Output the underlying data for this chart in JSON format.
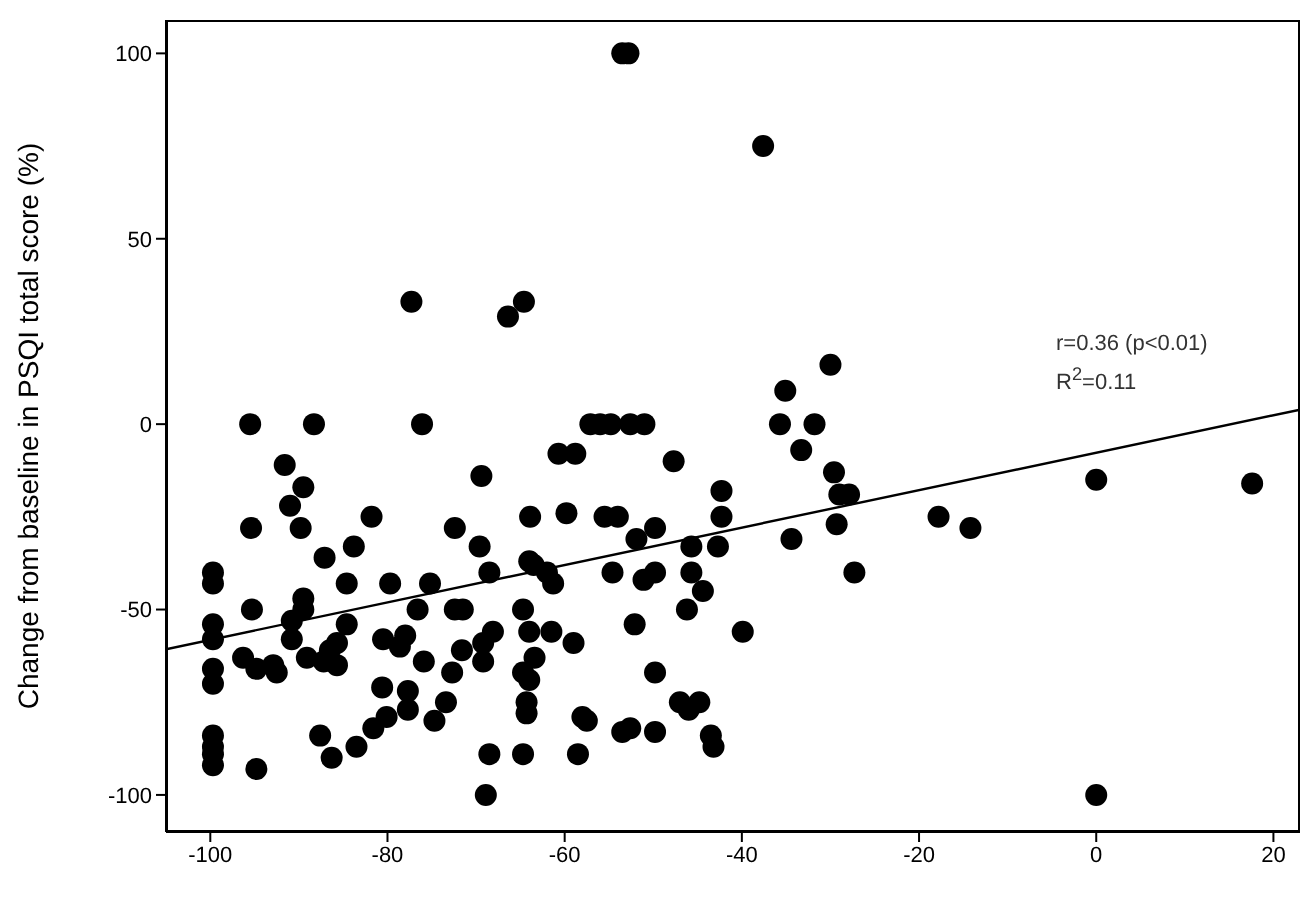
{
  "chart_data": {
    "type": "scatter",
    "ylabel": "Change from baseline in PSQI total score (%)",
    "xlim": [
      -105,
      23
    ],
    "xticks": [
      -100,
      -80,
      -60,
      -40,
      -20,
      0,
      20
    ],
    "ylim": [
      -110,
      109
    ],
    "yticks": [
      -100,
      -50,
      0,
      50,
      100
    ],
    "marker": "circle",
    "annotations": [
      "r=0.36 (p<0.01)",
      "R$^{2}$=0.11"
    ],
    "series": [
      {
        "color": "#000000",
        "x": [
          -53.5,
          -52.8,
          -37.6,
          -77.3,
          -64.6,
          -66.4,
          -95.5,
          -88.3,
          -76.1,
          -57.1,
          -56,
          -54.8,
          -52.6,
          -51,
          -35.7,
          -31.8,
          -35.1,
          -30,
          -33.3,
          -29.6,
          -29,
          -27.9,
          -29.3,
          -34.4,
          -27.3,
          -17.8,
          -14.2,
          0,
          17.6,
          0,
          -91.6,
          -89.5,
          -91,
          -89.8,
          -95.4,
          -69.4,
          -81.8,
          -72.4,
          -63.9,
          -87.1,
          -83.8,
          -69.6,
          -68.5,
          -64,
          -99.7,
          -99.7,
          -84.6,
          -79.7,
          -75.2,
          -89.5,
          -89.5,
          -95.3,
          -76.6,
          -72.4,
          -71.5,
          -64.7,
          -99.7,
          -99.7,
          -90.8,
          -90.8,
          -84.6,
          -85.7,
          -86.5,
          -80.5,
          -78.6,
          -78,
          -68.1,
          -69.2,
          -64,
          -63.4,
          -96.3,
          -94.8,
          -92.9,
          -92.5,
          -89.1,
          -87.2,
          -85.7,
          -75.9,
          -71.6,
          -69.2,
          -99.7,
          -99.7,
          -72.7,
          -64.7,
          -64,
          -80.6,
          -77.7,
          -77.7,
          -73.4,
          -74.7,
          -64.3,
          -64.3,
          -80.1,
          -81.6,
          -87.6,
          -99.7,
          -99.7,
          -99.7,
          -99.7,
          -83.5,
          -86.3,
          -94.8,
          -68.5,
          -64.7,
          -68.9,
          -60.7,
          -58.8,
          -47.7,
          -42.3,
          -42.3,
          -42.7,
          -45.7,
          -45.7,
          -44.4,
          -46.2,
          -39.9,
          -59.8,
          -55.5,
          -54,
          -51.9,
          -49.8,
          -63.5,
          -62,
          -61.3,
          -54.6,
          -51.1,
          -49.8,
          -61.5,
          -59,
          -52.1,
          -49.8,
          -47,
          -44.8,
          -46,
          -58,
          -57.5,
          -53.5,
          -52.6,
          -49.8,
          -43.5,
          -43.2,
          -58.5
        ],
        "values": [
          100,
          100,
          75,
          33,
          33,
          29,
          0,
          0,
          0,
          0,
          0,
          0,
          0,
          0,
          0,
          0,
          9,
          16,
          -7,
          -13,
          -19,
          -19,
          -27,
          -31,
          -40,
          -25,
          -28,
          -15,
          -16,
          -100,
          -11,
          -17,
          -22,
          -28,
          -28,
          -14,
          -25,
          -28,
          -25,
          -36,
          -33,
          -33,
          -40,
          -37,
          -40,
          -43,
          -43,
          -43,
          -43,
          -47,
          -50,
          -50,
          -50,
          -50,
          -50,
          -50,
          -54,
          -58,
          -53,
          -58,
          -54,
          -59,
          -61,
          -58,
          -60,
          -57,
          -56,
          -59,
          -56,
          -63,
          -63,
          -66,
          -65,
          -67,
          -63,
          -64,
          -65,
          -64,
          -61,
          -64,
          -66,
          -70,
          -67,
          -67,
          -69,
          -71,
          -72,
          -77,
          -75,
          -80,
          -75,
          -78,
          -79,
          -82,
          -84,
          -84,
          -87,
          -89,
          -92,
          -87,
          -90,
          -93,
          -89,
          -89,
          -100,
          -8,
          -8,
          -10,
          -18,
          -25,
          -33,
          -33,
          -40,
          -45,
          -50,
          -56,
          -24,
          -25,
          -25,
          -31,
          -28,
          -38,
          -40,
          -43,
          -40,
          -42,
          -40,
          -56,
          -59,
          -54,
          -67,
          -75,
          -75,
          -77,
          -79,
          -80,
          -83,
          -82,
          -83,
          -84,
          -87,
          -89
        ]
      },
      {
        "type": "line",
        "color": "#000000",
        "marker": "none",
        "x": [
          -105,
          23
        ],
        "values": [
          -60.7,
          3.9
        ]
      }
    ]
  }
}
